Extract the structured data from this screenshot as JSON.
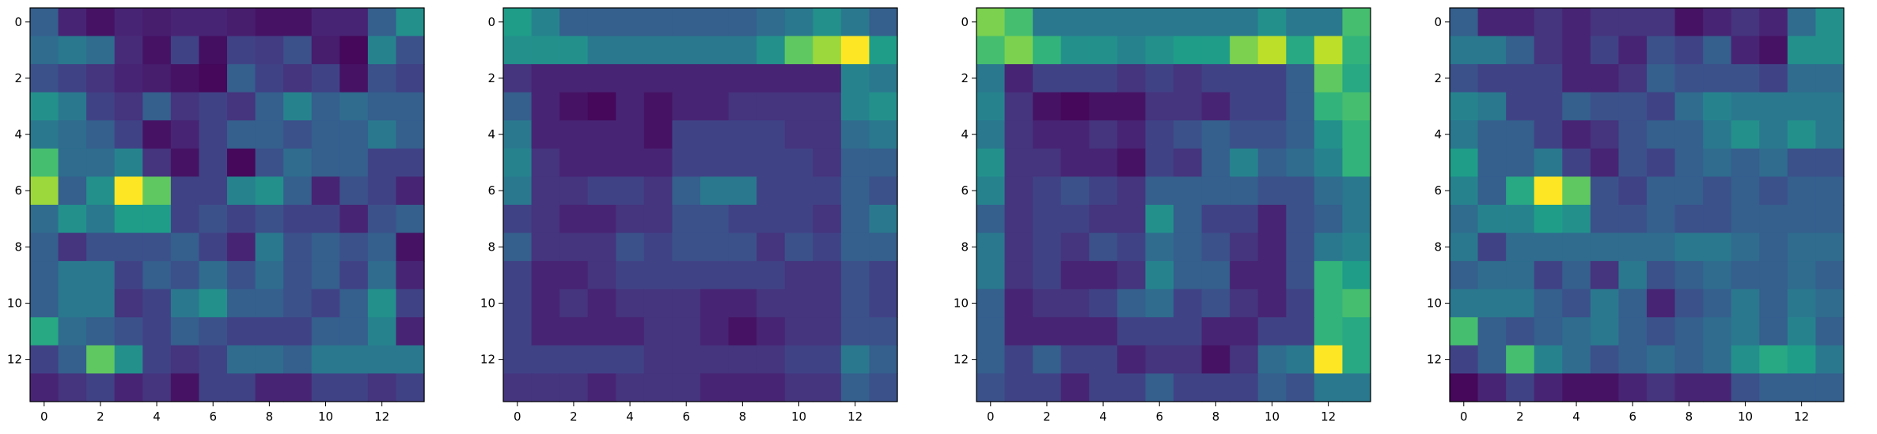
{
  "figure": {
    "colormap": "viridis",
    "colormap_stops": [
      "#440154",
      "#482878",
      "#3e4989",
      "#31688e",
      "#26828e",
      "#1f9e89",
      "#35b779",
      "#6ece58",
      "#b5de2b",
      "#fde725"
    ]
  },
  "chart_data": [
    {
      "type": "heatmap",
      "title": "",
      "xlabel": "",
      "ylabel": "",
      "x_ticks": [
        "0",
        "2",
        "4",
        "6",
        "8",
        "10",
        "12"
      ],
      "y_ticks": [
        "0",
        "2",
        "4",
        "6",
        "8",
        "10",
        "12"
      ],
      "xlim": [
        -0.5,
        13.5
      ],
      "ylim": [
        13.5,
        -0.5
      ],
      "grid": false,
      "values": [
        [
          0.3,
          0.1,
          0.05,
          0.1,
          0.08,
          0.1,
          0.1,
          0.08,
          0.05,
          0.05,
          0.1,
          0.1,
          0.3,
          0.5
        ],
        [
          0.35,
          0.4,
          0.35,
          0.12,
          0.05,
          0.2,
          0.04,
          0.2,
          0.18,
          0.25,
          0.08,
          0.02,
          0.45,
          0.25
        ],
        [
          0.25,
          0.2,
          0.15,
          0.1,
          0.08,
          0.05,
          0.02,
          0.3,
          0.2,
          0.15,
          0.2,
          0.05,
          0.25,
          0.2
        ],
        [
          0.5,
          0.4,
          0.2,
          0.15,
          0.3,
          0.15,
          0.2,
          0.15,
          0.3,
          0.45,
          0.3,
          0.35,
          0.3,
          0.3
        ],
        [
          0.4,
          0.35,
          0.3,
          0.2,
          0.05,
          0.1,
          0.2,
          0.3,
          0.3,
          0.25,
          0.3,
          0.3,
          0.4,
          0.3
        ],
        [
          0.7,
          0.35,
          0.35,
          0.45,
          0.15,
          0.05,
          0.2,
          0.02,
          0.25,
          0.35,
          0.3,
          0.3,
          0.2,
          0.2
        ],
        [
          0.85,
          0.3,
          0.5,
          1.0,
          0.75,
          0.2,
          0.2,
          0.45,
          0.5,
          0.3,
          0.1,
          0.25,
          0.2,
          0.1
        ],
        [
          0.35,
          0.5,
          0.4,
          0.55,
          0.55,
          0.2,
          0.25,
          0.2,
          0.25,
          0.2,
          0.2,
          0.1,
          0.25,
          0.3
        ],
        [
          0.3,
          0.15,
          0.25,
          0.25,
          0.25,
          0.3,
          0.2,
          0.1,
          0.4,
          0.25,
          0.3,
          0.25,
          0.3,
          0.05
        ],
        [
          0.3,
          0.4,
          0.4,
          0.2,
          0.3,
          0.25,
          0.35,
          0.25,
          0.35,
          0.25,
          0.3,
          0.2,
          0.35,
          0.1
        ],
        [
          0.3,
          0.4,
          0.4,
          0.15,
          0.2,
          0.4,
          0.5,
          0.3,
          0.3,
          0.25,
          0.2,
          0.3,
          0.5,
          0.2
        ],
        [
          0.6,
          0.35,
          0.3,
          0.25,
          0.2,
          0.3,
          0.25,
          0.2,
          0.2,
          0.2,
          0.3,
          0.3,
          0.45,
          0.1
        ],
        [
          0.2,
          0.3,
          0.75,
          0.5,
          0.2,
          0.15,
          0.2,
          0.35,
          0.35,
          0.3,
          0.4,
          0.4,
          0.4,
          0.4
        ],
        [
          0.1,
          0.15,
          0.2,
          0.1,
          0.15,
          0.05,
          0.2,
          0.2,
          0.1,
          0.1,
          0.2,
          0.2,
          0.15,
          0.2
        ]
      ]
    },
    {
      "type": "heatmap",
      "title": "",
      "xlabel": "",
      "ylabel": "",
      "x_ticks": [
        "0",
        "2",
        "4",
        "6",
        "8",
        "10",
        "12"
      ],
      "y_ticks": [
        "0",
        "2",
        "4",
        "6",
        "8",
        "10",
        "12"
      ],
      "xlim": [
        -0.5,
        13.5
      ],
      "ylim": [
        13.5,
        -0.5
      ],
      "grid": false,
      "values": [
        [
          0.55,
          0.45,
          0.3,
          0.3,
          0.3,
          0.3,
          0.3,
          0.3,
          0.3,
          0.35,
          0.4,
          0.5,
          0.4,
          0.3
        ],
        [
          0.5,
          0.5,
          0.5,
          0.4,
          0.4,
          0.4,
          0.4,
          0.4,
          0.4,
          0.5,
          0.75,
          0.85,
          1.0,
          0.55
        ],
        [
          0.15,
          0.1,
          0.1,
          0.1,
          0.1,
          0.1,
          0.1,
          0.1,
          0.1,
          0.1,
          0.1,
          0.1,
          0.45,
          0.4
        ],
        [
          0.3,
          0.1,
          0.05,
          0.02,
          0.1,
          0.05,
          0.1,
          0.1,
          0.15,
          0.15,
          0.15,
          0.15,
          0.45,
          0.5
        ],
        [
          0.4,
          0.1,
          0.1,
          0.1,
          0.1,
          0.05,
          0.2,
          0.2,
          0.2,
          0.2,
          0.15,
          0.15,
          0.35,
          0.4
        ],
        [
          0.45,
          0.15,
          0.1,
          0.1,
          0.1,
          0.1,
          0.2,
          0.2,
          0.2,
          0.2,
          0.2,
          0.15,
          0.3,
          0.3
        ],
        [
          0.4,
          0.15,
          0.15,
          0.2,
          0.2,
          0.15,
          0.3,
          0.4,
          0.4,
          0.2,
          0.2,
          0.2,
          0.3,
          0.25
        ],
        [
          0.2,
          0.15,
          0.1,
          0.1,
          0.15,
          0.15,
          0.25,
          0.25,
          0.2,
          0.2,
          0.2,
          0.15,
          0.3,
          0.4
        ],
        [
          0.3,
          0.15,
          0.15,
          0.15,
          0.25,
          0.2,
          0.25,
          0.25,
          0.25,
          0.15,
          0.25,
          0.2,
          0.3,
          0.3
        ],
        [
          0.2,
          0.1,
          0.1,
          0.15,
          0.2,
          0.2,
          0.2,
          0.2,
          0.2,
          0.2,
          0.15,
          0.15,
          0.25,
          0.2
        ],
        [
          0.2,
          0.1,
          0.15,
          0.1,
          0.15,
          0.15,
          0.15,
          0.1,
          0.1,
          0.15,
          0.15,
          0.15,
          0.25,
          0.2
        ],
        [
          0.2,
          0.1,
          0.1,
          0.1,
          0.1,
          0.15,
          0.15,
          0.1,
          0.05,
          0.1,
          0.15,
          0.15,
          0.25,
          0.25
        ],
        [
          0.2,
          0.2,
          0.2,
          0.2,
          0.2,
          0.15,
          0.15,
          0.15,
          0.15,
          0.15,
          0.2,
          0.2,
          0.4,
          0.3
        ],
        [
          0.15,
          0.15,
          0.15,
          0.1,
          0.15,
          0.15,
          0.15,
          0.1,
          0.1,
          0.1,
          0.15,
          0.15,
          0.3,
          0.25
        ]
      ]
    },
    {
      "type": "heatmap",
      "title": "",
      "xlabel": "",
      "ylabel": "",
      "x_ticks": [
        "0",
        "2",
        "4",
        "6",
        "8",
        "10",
        "12"
      ],
      "y_ticks": [
        "0",
        "2",
        "4",
        "6",
        "8",
        "10",
        "12"
      ],
      "xlim": [
        -0.5,
        13.5
      ],
      "ylim": [
        13.5,
        -0.5
      ],
      "grid": false,
      "values": [
        [
          0.8,
          0.7,
          0.4,
          0.4,
          0.4,
          0.4,
          0.4,
          0.4,
          0.4,
          0.4,
          0.5,
          0.4,
          0.4,
          0.7
        ],
        [
          0.7,
          0.8,
          0.65,
          0.5,
          0.5,
          0.45,
          0.5,
          0.55,
          0.55,
          0.8,
          0.9,
          0.6,
          0.9,
          0.65
        ],
        [
          0.4,
          0.1,
          0.2,
          0.2,
          0.2,
          0.15,
          0.2,
          0.15,
          0.2,
          0.2,
          0.2,
          0.3,
          0.75,
          0.6
        ],
        [
          0.45,
          0.15,
          0.05,
          0.02,
          0.05,
          0.05,
          0.15,
          0.15,
          0.1,
          0.2,
          0.2,
          0.3,
          0.65,
          0.7
        ],
        [
          0.4,
          0.15,
          0.1,
          0.1,
          0.15,
          0.1,
          0.2,
          0.25,
          0.3,
          0.25,
          0.25,
          0.3,
          0.5,
          0.65
        ],
        [
          0.5,
          0.15,
          0.15,
          0.1,
          0.1,
          0.05,
          0.2,
          0.15,
          0.3,
          0.45,
          0.3,
          0.35,
          0.45,
          0.65
        ],
        [
          0.45,
          0.15,
          0.2,
          0.25,
          0.2,
          0.15,
          0.3,
          0.3,
          0.3,
          0.3,
          0.25,
          0.25,
          0.35,
          0.4
        ],
        [
          0.3,
          0.15,
          0.2,
          0.2,
          0.15,
          0.15,
          0.5,
          0.3,
          0.2,
          0.2,
          0.1,
          0.25,
          0.3,
          0.4
        ],
        [
          0.4,
          0.15,
          0.2,
          0.15,
          0.25,
          0.2,
          0.35,
          0.3,
          0.25,
          0.15,
          0.1,
          0.25,
          0.4,
          0.45
        ],
        [
          0.4,
          0.15,
          0.2,
          0.1,
          0.1,
          0.15,
          0.45,
          0.3,
          0.3,
          0.1,
          0.1,
          0.25,
          0.65,
          0.55
        ],
        [
          0.3,
          0.1,
          0.15,
          0.15,
          0.2,
          0.3,
          0.35,
          0.2,
          0.25,
          0.15,
          0.1,
          0.2,
          0.65,
          0.7
        ],
        [
          0.3,
          0.1,
          0.1,
          0.1,
          0.1,
          0.2,
          0.2,
          0.2,
          0.1,
          0.1,
          0.2,
          0.2,
          0.65,
          0.6
        ],
        [
          0.3,
          0.2,
          0.3,
          0.2,
          0.2,
          0.1,
          0.15,
          0.15,
          0.05,
          0.15,
          0.35,
          0.4,
          1.0,
          0.6
        ],
        [
          0.25,
          0.2,
          0.2,
          0.1,
          0.2,
          0.2,
          0.3,
          0.2,
          0.2,
          0.2,
          0.3,
          0.25,
          0.4,
          0.4
        ]
      ]
    },
    {
      "type": "heatmap",
      "title": "",
      "xlabel": "",
      "ylabel": "",
      "x_ticks": [
        "0",
        "2",
        "4",
        "6",
        "8",
        "10",
        "12"
      ],
      "y_ticks": [
        "0",
        "2",
        "4",
        "6",
        "8",
        "10",
        "12"
      ],
      "xlim": [
        -0.5,
        13.5
      ],
      "ylim": [
        13.5,
        -0.5
      ],
      "grid": false,
      "values": [
        [
          0.3,
          0.1,
          0.1,
          0.15,
          0.1,
          0.15,
          0.15,
          0.15,
          0.05,
          0.1,
          0.15,
          0.1,
          0.35,
          0.5
        ],
        [
          0.4,
          0.4,
          0.3,
          0.15,
          0.1,
          0.2,
          0.1,
          0.25,
          0.2,
          0.3,
          0.1,
          0.05,
          0.5,
          0.5
        ],
        [
          0.25,
          0.2,
          0.2,
          0.2,
          0.1,
          0.1,
          0.15,
          0.3,
          0.25,
          0.25,
          0.25,
          0.2,
          0.35,
          0.35
        ],
        [
          0.45,
          0.4,
          0.2,
          0.2,
          0.3,
          0.25,
          0.25,
          0.2,
          0.35,
          0.45,
          0.4,
          0.4,
          0.4,
          0.4
        ],
        [
          0.4,
          0.3,
          0.3,
          0.2,
          0.1,
          0.15,
          0.25,
          0.3,
          0.3,
          0.4,
          0.5,
          0.4,
          0.5,
          0.4
        ],
        [
          0.55,
          0.3,
          0.3,
          0.4,
          0.2,
          0.1,
          0.25,
          0.2,
          0.3,
          0.35,
          0.3,
          0.35,
          0.25,
          0.25
        ],
        [
          0.45,
          0.3,
          0.6,
          1.0,
          0.75,
          0.25,
          0.2,
          0.3,
          0.3,
          0.25,
          0.3,
          0.25,
          0.3,
          0.3
        ],
        [
          0.35,
          0.45,
          0.45,
          0.55,
          0.5,
          0.25,
          0.25,
          0.3,
          0.25,
          0.25,
          0.3,
          0.3,
          0.3,
          0.3
        ],
        [
          0.4,
          0.2,
          0.35,
          0.35,
          0.35,
          0.35,
          0.35,
          0.35,
          0.4,
          0.4,
          0.35,
          0.3,
          0.35,
          0.35
        ],
        [
          0.3,
          0.35,
          0.35,
          0.2,
          0.3,
          0.15,
          0.4,
          0.25,
          0.3,
          0.35,
          0.3,
          0.3,
          0.35,
          0.3
        ],
        [
          0.4,
          0.4,
          0.4,
          0.3,
          0.25,
          0.4,
          0.3,
          0.1,
          0.25,
          0.3,
          0.4,
          0.3,
          0.4,
          0.35
        ],
        [
          0.7,
          0.3,
          0.25,
          0.3,
          0.35,
          0.4,
          0.3,
          0.25,
          0.3,
          0.35,
          0.4,
          0.3,
          0.45,
          0.3
        ],
        [
          0.2,
          0.3,
          0.7,
          0.45,
          0.35,
          0.25,
          0.3,
          0.35,
          0.3,
          0.35,
          0.5,
          0.6,
          0.55,
          0.4
        ],
        [
          0.02,
          0.1,
          0.2,
          0.1,
          0.05,
          0.05,
          0.1,
          0.15,
          0.1,
          0.1,
          0.25,
          0.3,
          0.3,
          0.3
        ]
      ]
    }
  ]
}
